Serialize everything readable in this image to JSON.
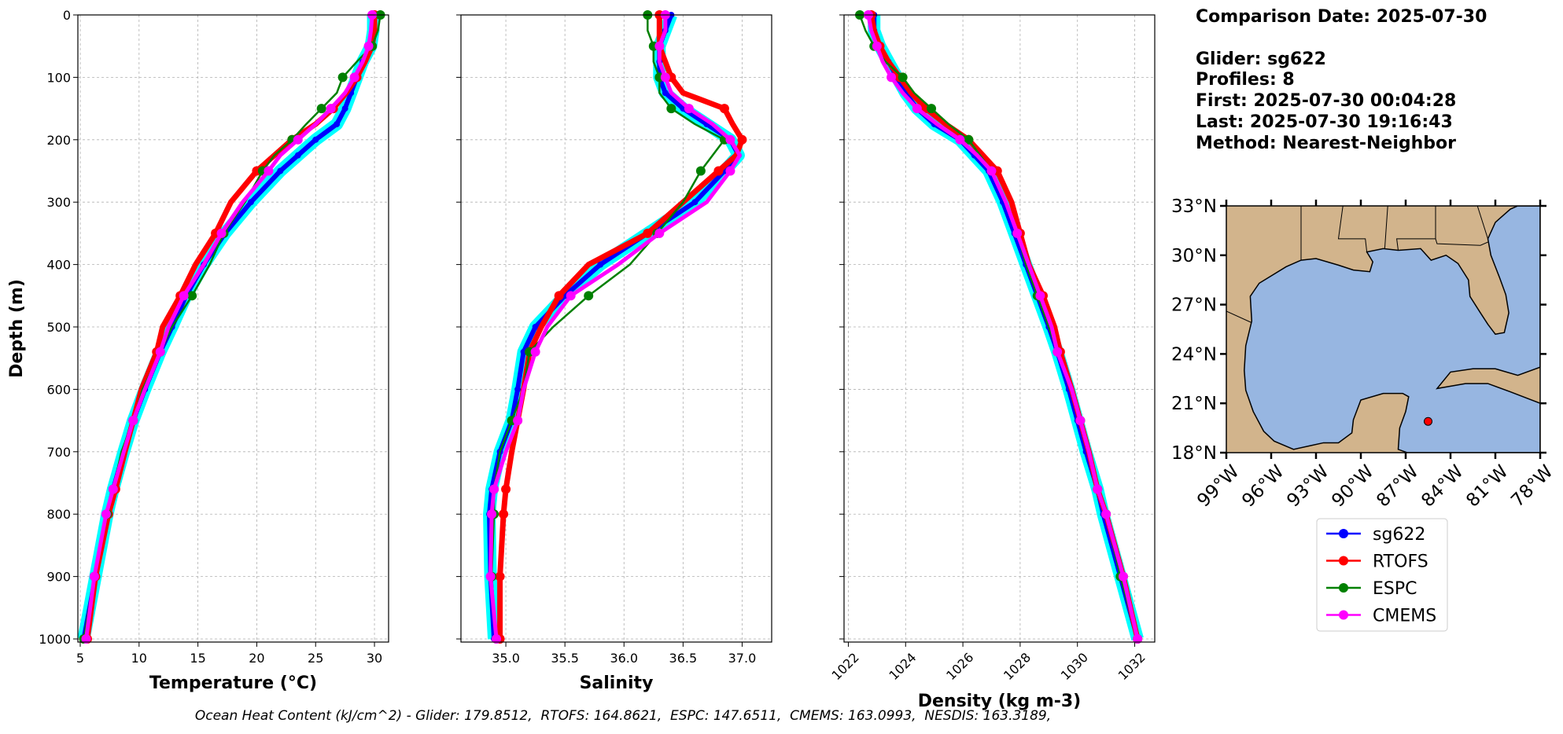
{
  "info": [
    "Comparison Date: 2025-07-30",
    "Glider: sg622",
    "Profiles: 8",
    "First: 2025-07-30 00:04:28",
    "Last: 2025-07-30 19:16:43",
    "Method: Nearest-Neighbor"
  ],
  "footer": "Ocean Heat Content (kJ/cm^2) - Glider: 179.8512,  RTOFS: 164.8621,  ESPC: 147.6511,  CMEMS: 163.0993,  NESDIS: 163.3189,",
  "legend": [
    {
      "name": "sg622",
      "color": "#0000ff"
    },
    {
      "name": "RTOFS",
      "color": "#ff0000"
    },
    {
      "name": "ESPC",
      "color": "#008000"
    },
    {
      "name": "CMEMS",
      "color": "#ff00ff"
    }
  ],
  "chart_data": [
    {
      "type": "line",
      "xlabel": "Temperature (°C)",
      "ylabel": "Depth (m)",
      "grid": true,
      "xlim": [
        4.8,
        31.2
      ],
      "xticks": [
        5,
        10,
        15,
        20,
        25,
        30
      ],
      "ylim": [
        1005,
        0
      ],
      "yticks": [
        0,
        100,
        200,
        300,
        400,
        500,
        600,
        700,
        800,
        900,
        1000
      ],
      "ytick_labels": true,
      "y": [
        0,
        25,
        50,
        75,
        100,
        125,
        150,
        175,
        200,
        225,
        250,
        300,
        350,
        400,
        450,
        500,
        540,
        600,
        650,
        700,
        760,
        800,
        900,
        1000
      ],
      "series": [
        {
          "values": [
            29.9,
            29.9,
            29.7,
            29.0,
            28.5,
            28.0,
            27.5,
            26.8,
            25.0,
            23.5,
            22.0,
            19.5,
            17.3,
            15.5,
            14.0,
            12.8,
            11.8,
            10.5,
            9.5,
            8.7,
            7.8,
            7.3,
            6.3,
            5.3
          ]
        },
        {
          "values": [
            30.0,
            30.0,
            29.8,
            29.2,
            28.5,
            27.6,
            26.5,
            25.0,
            23.0,
            21.5,
            20.0,
            17.8,
            16.5,
            14.8,
            13.5,
            12.0,
            11.5,
            10.2,
            9.5,
            8.8,
            8.0,
            7.4,
            6.3,
            5.6
          ]
        },
        {
          "values": [
            30.5,
            30.3,
            29.8,
            28.5,
            27.3,
            26.8,
            25.5,
            24.2,
            23.0,
            21.5,
            20.5,
            19.0,
            17.2,
            16.0,
            14.5,
            12.8,
            11.8,
            10.3,
            9.5,
            8.5,
            7.8,
            7.3,
            6.2,
            5.3
          ]
        },
        {
          "values": [
            29.8,
            29.7,
            29.5,
            29.0,
            28.3,
            27.5,
            26.3,
            25.0,
            23.5,
            22.0,
            21.0,
            18.8,
            17.0,
            15.5,
            13.8,
            12.5,
            11.8,
            10.5,
            9.5,
            8.7,
            7.8,
            7.2,
            6.2,
            5.5
          ]
        }
      ]
    },
    {
      "type": "line",
      "xlabel": "Salinity",
      "grid": true,
      "xlim": [
        34.62,
        37.25
      ],
      "xticks": [
        {
          "value": 35,
          "label": "35.0"
        },
        35.5,
        {
          "value": 36,
          "label": "36.0"
        },
        36.5,
        {
          "value": 37,
          "label": "37.0"
        }
      ],
      "ylim": [
        1005,
        0
      ],
      "yticks": [
        0,
        100,
        200,
        300,
        400,
        500,
        600,
        700,
        800,
        900,
        1000
      ],
      "ytick_labels": false,
      "y": [
        0,
        25,
        50,
        75,
        100,
        125,
        150,
        175,
        200,
        225,
        250,
        300,
        350,
        400,
        450,
        500,
        540,
        600,
        650,
        700,
        760,
        800,
        900,
        1000
      ],
      "series": [
        {
          "values": [
            36.4,
            36.35,
            36.3,
            36.3,
            36.3,
            36.35,
            36.5,
            36.7,
            36.9,
            36.97,
            36.85,
            36.6,
            36.2,
            35.8,
            35.5,
            35.25,
            35.15,
            35.1,
            35.05,
            34.95,
            34.88,
            34.86,
            34.87,
            34.9
          ]
        },
        {
          "values": [
            36.3,
            36.3,
            36.3,
            36.35,
            36.4,
            36.5,
            36.85,
            36.92,
            37.0,
            36.95,
            36.8,
            36.5,
            36.2,
            35.7,
            35.45,
            35.3,
            35.2,
            35.15,
            35.1,
            35.05,
            35.0,
            34.98,
            34.95,
            34.95
          ]
        },
        {
          "values": [
            36.2,
            36.2,
            36.25,
            36.25,
            36.3,
            36.3,
            36.4,
            36.6,
            36.85,
            36.75,
            36.65,
            36.5,
            36.28,
            36.05,
            35.7,
            35.4,
            35.2,
            35.15,
            35.05,
            34.95,
            34.9,
            34.9,
            34.88,
            34.92
          ]
        },
        {
          "values": [
            36.35,
            36.35,
            36.3,
            36.3,
            36.35,
            36.4,
            36.55,
            36.75,
            36.9,
            36.98,
            36.9,
            36.7,
            36.3,
            35.95,
            35.55,
            35.35,
            35.25,
            35.15,
            35.1,
            35.0,
            34.9,
            34.88,
            34.87,
            34.92
          ]
        }
      ]
    },
    {
      "type": "line",
      "xlabel": "Density (kg m-3)",
      "grid": true,
      "xtick_rotation": 45,
      "xlim": [
        1021.85,
        1032.7
      ],
      "xticks": [
        1022,
        1024,
        1026,
        1028,
        1030,
        1032
      ],
      "ylim": [
        1005,
        0
      ],
      "yticks": [
        0,
        100,
        200,
        300,
        400,
        500,
        600,
        700,
        800,
        900,
        1000
      ],
      "ytick_labels": false,
      "y": [
        0,
        25,
        50,
        75,
        100,
        125,
        150,
        175,
        200,
        225,
        250,
        300,
        350,
        400,
        450,
        500,
        540,
        600,
        650,
        700,
        760,
        800,
        900,
        1000
      ],
      "series": [
        {
          "values": [
            1022.9,
            1022.9,
            1023.1,
            1023.4,
            1023.7,
            1024.0,
            1024.4,
            1025.0,
            1025.9,
            1026.4,
            1026.9,
            1027.4,
            1027.8,
            1028.2,
            1028.6,
            1029.0,
            1029.3,
            1029.7,
            1030.0,
            1030.3,
            1030.7,
            1030.9,
            1031.5,
            1032.1
          ]
        },
        {
          "values": [
            1022.8,
            1022.9,
            1023.1,
            1023.4,
            1023.8,
            1024.2,
            1024.7,
            1025.4,
            1026.2,
            1026.7,
            1027.2,
            1027.7,
            1028.0,
            1028.3,
            1028.8,
            1029.2,
            1029.4,
            1029.8,
            1030.1,
            1030.4,
            1030.7,
            1031.0,
            1031.6,
            1032.1
          ]
        },
        {
          "values": [
            1022.4,
            1022.6,
            1022.9,
            1023.3,
            1023.9,
            1024.3,
            1024.9,
            1025.5,
            1026.2,
            1026.6,
            1027.0,
            1027.5,
            1027.9,
            1028.2,
            1028.6,
            1029.0,
            1029.3,
            1029.8,
            1030.1,
            1030.4,
            1030.7,
            1031.0,
            1031.5,
            1032.1
          ]
        },
        {
          "values": [
            1022.7,
            1022.8,
            1023.0,
            1023.2,
            1023.5,
            1023.9,
            1024.4,
            1025.1,
            1025.9,
            1026.5,
            1027.0,
            1027.5,
            1027.9,
            1028.3,
            1028.7,
            1029.1,
            1029.3,
            1029.8,
            1030.1,
            1030.4,
            1030.7,
            1031.0,
            1031.6,
            1032.1
          ]
        }
      ]
    }
  ],
  "map": {
    "xlim": [
      -99,
      -78
    ],
    "ylim": [
      18,
      33
    ],
    "xticks": [
      {
        "value": -99,
        "label": "99°W"
      },
      {
        "value": -96,
        "label": "96°W"
      },
      {
        "value": -93,
        "label": "93°W"
      },
      {
        "value": -90,
        "label": "90°W"
      },
      {
        "value": -87,
        "label": "87°W"
      },
      {
        "value": -84,
        "label": "84°W"
      },
      {
        "value": -81,
        "label": "81°W"
      },
      {
        "value": -78,
        "label": "78°W"
      }
    ],
    "yticks": [
      {
        "value": 18,
        "label": "18°N"
      },
      {
        "value": 21,
        "label": "21°N"
      },
      {
        "value": 24,
        "label": "24°N"
      },
      {
        "value": 27,
        "label": "27°N"
      },
      {
        "value": 30,
        "label": "30°N"
      },
      {
        "value": 33,
        "label": "33°N"
      }
    ],
    "glider_position": {
      "lon": -85.5,
      "lat": 19.9,
      "color": "#ff0000"
    }
  }
}
